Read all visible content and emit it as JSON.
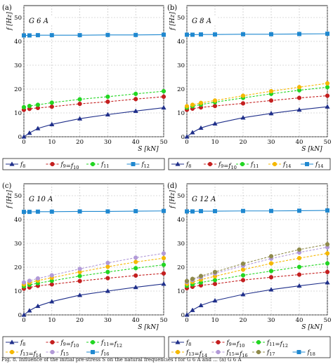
{
  "figure": {
    "caption_fragment": "Fig. 8. Influence of the initial pre-stress S on the natural frequencies f for G 6 A and ... (a) G 6 A"
  },
  "chart_data": [
    {
      "type": "line",
      "panel_label": "(a)",
      "title": "G 6 A",
      "xlabel": "S [kN]",
      "ylabel": "f [Hz]",
      "xlim": [
        0,
        50
      ],
      "ylim": [
        0,
        55
      ],
      "xticks": [
        0,
        10,
        20,
        30,
        40,
        50
      ],
      "yticks": [
        0,
        10,
        20,
        30,
        40,
        50
      ],
      "grid": true,
      "x": [
        0,
        2,
        5,
        10,
        20,
        30,
        40,
        50
      ],
      "series": [
        {
          "name": "f8",
          "legend_text": "f8",
          "color": "#1f2f8a",
          "marker": "triangle",
          "style": "solid",
          "values": [
            0.0,
            1.6,
            3.5,
            5.2,
            7.6,
            9.3,
            10.8,
            12.2
          ]
        },
        {
          "name": "f9=f10",
          "legend_text": "f9 = f10",
          "color": "#c41f1f",
          "marker": "circle",
          "style": "dashed",
          "values": [
            11.3,
            11.7,
            12.1,
            12.6,
            13.8,
            14.7,
            15.8,
            16.8
          ]
        },
        {
          "name": "f11",
          "legend_text": "f11",
          "color": "#22d622",
          "marker": "circle",
          "style": "dashed",
          "values": [
            12.4,
            12.9,
            13.4,
            14.3,
            15.7,
            16.8,
            18.0,
            19.1
          ]
        },
        {
          "name": "f12",
          "legend_text": "f12",
          "color": "#1f88d0",
          "marker": "square",
          "style": "solid",
          "values": [
            42.5,
            42.5,
            42.6,
            42.6,
            42.6,
            42.7,
            42.7,
            42.8
          ]
        }
      ],
      "legend_position": "below",
      "legend_rows": [
        [
          "f8",
          "f9=f10",
          "f11",
          "f12"
        ]
      ]
    },
    {
      "type": "line",
      "panel_label": "(b)",
      "title": "G 8 A",
      "xlabel": "S [kN]",
      "ylabel": "f [Hz]",
      "xlim": [
        0,
        50
      ],
      "ylim": [
        0,
        55
      ],
      "xticks": [
        0,
        10,
        20,
        30,
        40,
        50
      ],
      "yticks": [
        0,
        10,
        20,
        30,
        40,
        50
      ],
      "grid": true,
      "x": [
        0,
        2,
        5,
        10,
        20,
        30,
        40,
        50
      ],
      "series": [
        {
          "name": "f8",
          "legend_text": "f8",
          "color": "#1f2f8a",
          "marker": "triangle",
          "style": "solid",
          "values": [
            0.0,
            1.8,
            3.7,
            5.5,
            8.0,
            9.8,
            11.3,
            12.6
          ]
        },
        {
          "name": "f9=f10",
          "legend_text": "f9 = f10",
          "color": "#c41f1f",
          "marker": "circle",
          "style": "dashed",
          "values": [
            11.3,
            11.8,
            12.3,
            12.9,
            14.0,
            15.2,
            16.3,
            17.2
          ]
        },
        {
          "name": "f11",
          "legend_text": "f11",
          "color": "#22d622",
          "marker": "circle",
          "style": "dashed",
          "values": [
            12.2,
            12.8,
            13.5,
            14.5,
            16.3,
            18.0,
            19.5,
            20.8
          ]
        },
        {
          "name": "f14",
          "legend_text": "f14",
          "color": "#f5b800",
          "marker": "circle",
          "style": "dashed",
          "values": [
            12.8,
            13.4,
            14.2,
            15.2,
            17.2,
            19.1,
            20.8,
            22.4
          ]
        },
        {
          "name": "f14b",
          "legend_text": "f14",
          "color": "#1f88d0",
          "marker": "square",
          "style": "solid",
          "values": [
            42.8,
            42.8,
            42.9,
            42.9,
            43.0,
            43.0,
            43.1,
            43.2
          ]
        }
      ],
      "legend_position": "below",
      "legend_rows": [
        [
          "f8",
          "f9=f10",
          "f11",
          "f14",
          "f14b"
        ]
      ]
    },
    {
      "type": "line",
      "panel_label": "(c)",
      "title": "G 10 A",
      "xlabel": "S [kN]",
      "ylabel": "f [Hz]",
      "xlim": [
        0,
        50
      ],
      "ylim": [
        0,
        55
      ],
      "xticks": [
        0,
        10,
        20,
        30,
        40,
        50
      ],
      "yticks": [
        0,
        10,
        20,
        30,
        40,
        50
      ],
      "grid": true,
      "x": [
        0,
        2,
        5,
        10,
        20,
        30,
        40,
        50
      ],
      "series": [
        {
          "name": "f8",
          "legend_text": "f8",
          "color": "#1f2f8a",
          "marker": "triangle",
          "style": "solid",
          "values": [
            0.0,
            1.8,
            3.7,
            5.6,
            8.3,
            10.0,
            11.6,
            13.0
          ]
        },
        {
          "name": "f9=f10",
          "legend_text": "f9 = f10",
          "color": "#c41f1f",
          "marker": "circle",
          "style": "dashed",
          "values": [
            11.0,
            11.5,
            12.2,
            12.8,
            14.2,
            15.4,
            16.5,
            17.4
          ]
        },
        {
          "name": "f11=f12",
          "legend_text": "f11 = f12",
          "color": "#22d622",
          "marker": "circle",
          "style": "dashed",
          "values": [
            12.0,
            12.6,
            13.3,
            14.3,
            16.3,
            18.0,
            19.6,
            21.0
          ]
        },
        {
          "name": "f13=f14",
          "legend_text": "f13 = f14",
          "color": "#f5b800",
          "marker": "circle",
          "style": "dashed",
          "values": [
            12.8,
            13.5,
            14.4,
            15.6,
            18.0,
            20.2,
            22.2,
            23.8
          ]
        },
        {
          "name": "f15",
          "legend_text": "f15",
          "color": "#b29ad8",
          "marker": "circle",
          "style": "dashed",
          "values": [
            13.6,
            14.3,
            15.3,
            16.6,
            19.3,
            21.8,
            24.0,
            25.8
          ]
        },
        {
          "name": "f16",
          "legend_text": "f16",
          "color": "#1f88d0",
          "marker": "square",
          "style": "solid",
          "values": [
            43.2,
            43.2,
            43.3,
            43.3,
            43.4,
            43.4,
            43.5,
            43.6
          ]
        }
      ],
      "legend_position": "below",
      "legend_rows": [
        [
          "f8",
          "f9=f10",
          "f11=f12"
        ],
        [
          "f13=f14",
          "f15",
          "f16"
        ]
      ]
    },
    {
      "type": "line",
      "panel_label": "(d)",
      "title": "G 12 A",
      "xlabel": "S [kN]",
      "ylabel": "f [Hz]",
      "xlim": [
        0,
        50
      ],
      "ylim": [
        0,
        55
      ],
      "xticks": [
        0,
        10,
        20,
        30,
        40,
        50
      ],
      "yticks": [
        0,
        10,
        20,
        30,
        40,
        50
      ],
      "grid": true,
      "x": [
        0,
        2,
        5,
        10,
        20,
        30,
        40,
        50
      ],
      "series": [
        {
          "name": "f8",
          "legend_text": "f8",
          "color": "#1f2f8a",
          "marker": "triangle",
          "style": "solid",
          "values": [
            0.0,
            2.0,
            4.0,
            6.0,
            8.6,
            10.6,
            12.2,
            13.6
          ]
        },
        {
          "name": "f9=f10",
          "legend_text": "f9 = f10",
          "color": "#c41f1f",
          "marker": "circle",
          "style": "dashed",
          "values": [
            11.2,
            11.8,
            12.4,
            13.0,
            14.6,
            15.8,
            16.9,
            18.0
          ]
        },
        {
          "name": "f11=f12",
          "legend_text": "f11 = f12",
          "color": "#22d622",
          "marker": "circle",
          "style": "dashed",
          "values": [
            12.2,
            12.8,
            13.6,
            14.6,
            16.6,
            18.4,
            20.1,
            21.6
          ]
        },
        {
          "name": "f13=f14",
          "legend_text": "f13 = f14",
          "color": "#f5b800",
          "marker": "circle",
          "style": "dashed",
          "values": [
            13.0,
            13.8,
            14.8,
            16.2,
            19.0,
            21.6,
            23.8,
            25.8
          ]
        },
        {
          "name": "f15=f16",
          "legend_text": "f15 = f16",
          "color": "#b29ad8",
          "marker": "circle",
          "style": "dashed",
          "values": [
            13.8,
            14.6,
            15.8,
            17.4,
            20.6,
            23.6,
            26.2,
            28.4
          ]
        },
        {
          "name": "f17",
          "legend_text": "f17",
          "color": "#8f8a4a",
          "marker": "circle",
          "style": "dashed",
          "values": [
            14.2,
            15.1,
            16.3,
            18.0,
            21.5,
            24.6,
            27.4,
            29.6
          ]
        },
        {
          "name": "f18",
          "legend_text": "f18",
          "color": "#1f88d0",
          "marker": "square",
          "style": "solid",
          "values": [
            43.4,
            43.4,
            43.5,
            43.5,
            43.6,
            43.6,
            43.7,
            43.8
          ]
        }
      ],
      "legend_position": "below",
      "legend_rows": [
        [
          "f8",
          "f9=f10",
          "f11=f12"
        ],
        [
          "f13=f14",
          "f15=f16",
          "f17",
          "f18"
        ]
      ]
    }
  ]
}
